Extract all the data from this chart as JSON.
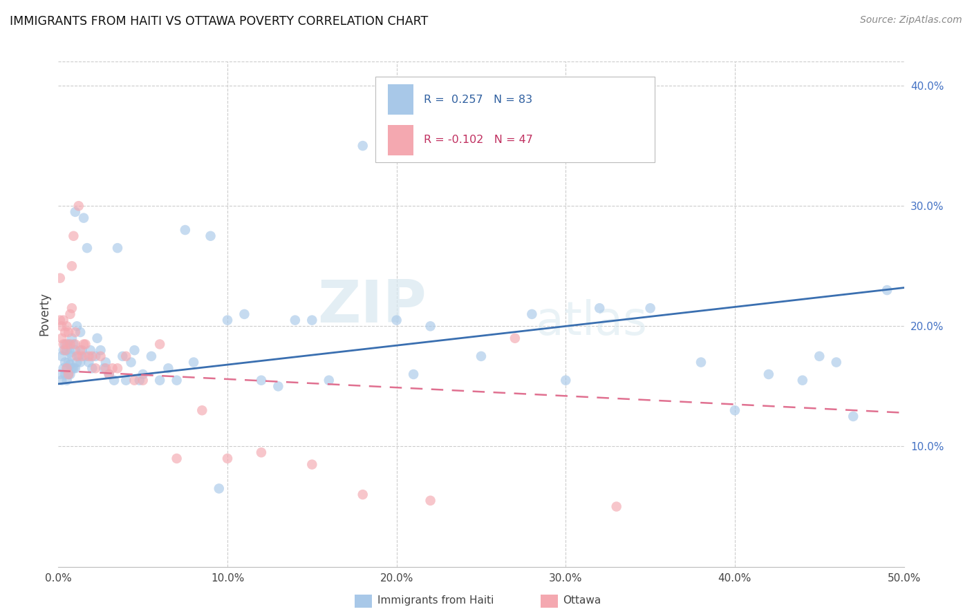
{
  "title": "IMMIGRANTS FROM HAITI VS OTTAWA POVERTY CORRELATION CHART",
  "source": "Source: ZipAtlas.com",
  "ylabel": "Poverty",
  "xlim": [
    0,
    0.5
  ],
  "ylim": [
    0,
    0.42
  ],
  "xticks": [
    0.0,
    0.1,
    0.2,
    0.3,
    0.4,
    0.5
  ],
  "yticks_right": [
    0.1,
    0.2,
    0.3,
    0.4
  ],
  "xticklabels": [
    "0.0%",
    "10.0%",
    "20.0%",
    "30.0%",
    "40.0%",
    "50.0%"
  ],
  "yticklabels_right": [
    "10.0%",
    "20.0%",
    "30.0%",
    "40.0%"
  ],
  "watermark_zip": "ZIP",
  "watermark_atlas": "atlas",
  "legend_blue_r": "R =  0.257",
  "legend_blue_n": "N = 83",
  "legend_pink_r": "R = -0.102",
  "legend_pink_n": "N = 47",
  "blue_color": "#a8c8e8",
  "pink_color": "#f4a8b0",
  "blue_line_color": "#3a6fb0",
  "pink_line_color": "#e07090",
  "blue_scatter_alpha": 0.65,
  "pink_scatter_alpha": 0.65,
  "blue_regression": [
    0.152,
    0.232
  ],
  "pink_regression": [
    0.163,
    0.128
  ],
  "blue_x": [
    0.001,
    0.002,
    0.002,
    0.003,
    0.003,
    0.004,
    0.004,
    0.004,
    0.005,
    0.005,
    0.005,
    0.006,
    0.006,
    0.006,
    0.007,
    0.007,
    0.007,
    0.008,
    0.008,
    0.008,
    0.009,
    0.009,
    0.01,
    0.01,
    0.01,
    0.011,
    0.011,
    0.012,
    0.013,
    0.013,
    0.014,
    0.015,
    0.016,
    0.017,
    0.018,
    0.019,
    0.02,
    0.022,
    0.023,
    0.025,
    0.027,
    0.028,
    0.03,
    0.033,
    0.035,
    0.038,
    0.04,
    0.043,
    0.045,
    0.048,
    0.05,
    0.055,
    0.06,
    0.065,
    0.07,
    0.075,
    0.08,
    0.09,
    0.095,
    0.1,
    0.11,
    0.12,
    0.13,
    0.14,
    0.15,
    0.16,
    0.18,
    0.2,
    0.21,
    0.22,
    0.25,
    0.28,
    0.3,
    0.32,
    0.35,
    0.38,
    0.4,
    0.42,
    0.44,
    0.45,
    0.46,
    0.47,
    0.49
  ],
  "blue_y": [
    0.16,
    0.155,
    0.175,
    0.165,
    0.18,
    0.16,
    0.17,
    0.185,
    0.155,
    0.165,
    0.18,
    0.16,
    0.17,
    0.185,
    0.16,
    0.168,
    0.178,
    0.165,
    0.175,
    0.19,
    0.165,
    0.185,
    0.165,
    0.18,
    0.295,
    0.17,
    0.2,
    0.175,
    0.17,
    0.195,
    0.18,
    0.29,
    0.175,
    0.265,
    0.17,
    0.18,
    0.165,
    0.175,
    0.19,
    0.18,
    0.165,
    0.17,
    0.16,
    0.155,
    0.265,
    0.175,
    0.155,
    0.17,
    0.18,
    0.155,
    0.16,
    0.175,
    0.155,
    0.165,
    0.155,
    0.28,
    0.17,
    0.275,
    0.065,
    0.205,
    0.21,
    0.155,
    0.15,
    0.205,
    0.205,
    0.155,
    0.35,
    0.205,
    0.16,
    0.2,
    0.175,
    0.21,
    0.155,
    0.215,
    0.215,
    0.17,
    0.13,
    0.16,
    0.155,
    0.175,
    0.17,
    0.125,
    0.23
  ],
  "pink_x": [
    0.001,
    0.001,
    0.002,
    0.002,
    0.003,
    0.003,
    0.004,
    0.004,
    0.005,
    0.005,
    0.005,
    0.006,
    0.006,
    0.007,
    0.007,
    0.008,
    0.008,
    0.009,
    0.01,
    0.01,
    0.011,
    0.012,
    0.013,
    0.014,
    0.015,
    0.016,
    0.018,
    0.02,
    0.022,
    0.025,
    0.028,
    0.03,
    0.032,
    0.035,
    0.04,
    0.045,
    0.05,
    0.06,
    0.07,
    0.085,
    0.1,
    0.12,
    0.15,
    0.18,
    0.22,
    0.27,
    0.33
  ],
  "pink_y": [
    0.205,
    0.24,
    0.2,
    0.19,
    0.185,
    0.205,
    0.18,
    0.195,
    0.165,
    0.185,
    0.2,
    0.16,
    0.195,
    0.185,
    0.21,
    0.215,
    0.25,
    0.275,
    0.185,
    0.195,
    0.175,
    0.3,
    0.18,
    0.175,
    0.185,
    0.185,
    0.175,
    0.175,
    0.165,
    0.175,
    0.165,
    0.16,
    0.165,
    0.165,
    0.175,
    0.155,
    0.155,
    0.185,
    0.09,
    0.13,
    0.09,
    0.095,
    0.085,
    0.06,
    0.055,
    0.19,
    0.05
  ],
  "background_color": "#ffffff",
  "grid_color": "#cccccc"
}
